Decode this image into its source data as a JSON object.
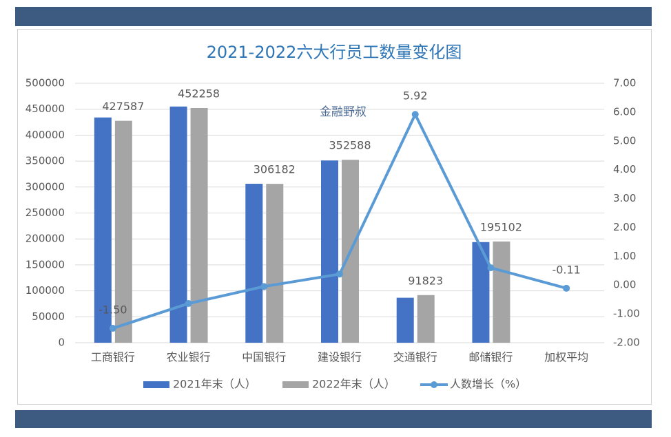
{
  "chart_data": {
    "type": "bar-line",
    "title": "2021-2022六大行员工数量变化图",
    "annotation": "金融野叔",
    "categories": [
      "工商银行",
      "农业银行",
      "中国银行",
      "建设银行",
      "交通银行",
      "邮储银行",
      "加权平均"
    ],
    "series": [
      {
        "name": "2021年末（人）",
        "type": "bar",
        "color": "#4472c4",
        "values": [
          434089,
          455174,
          306322,
          351252,
          86691,
          193946,
          null
        ]
      },
      {
        "name": "2022年末（人）",
        "type": "bar",
        "color": "#a5a5a5",
        "values": [
          427587,
          452258,
          306182,
          352588,
          91823,
          195102,
          null
        ]
      },
      {
        "name": "人数增长（%）",
        "type": "line",
        "axis": "y2",
        "color": "#5b9bd5",
        "values": [
          -1.5,
          -0.64,
          -0.05,
          0.38,
          5.92,
          0.6,
          -0.11
        ],
        "value_labels": [
          "-1.50",
          null,
          null,
          null,
          "5.92",
          null,
          "-0.11"
        ]
      }
    ],
    "ylim": [
      0,
      500000
    ],
    "yticks": [
      0,
      50000,
      100000,
      150000,
      200000,
      250000,
      300000,
      350000,
      400000,
      450000,
      500000
    ],
    "y2lim": [
      -2,
      7
    ],
    "y2ticks": [
      {
        "value": -2,
        "label": "-2.00"
      },
      {
        "value": -1,
        "label": "-1.00"
      },
      {
        "value": 0,
        "label": "0.00"
      },
      {
        "value": 1,
        "label": "1.00"
      },
      {
        "value": 2,
        "label": "2.00"
      },
      {
        "value": 3,
        "label": "3.00"
      },
      {
        "value": 4,
        "label": "4.00"
      },
      {
        "value": 5,
        "label": "5.00"
      },
      {
        "value": 6,
        "label": "6.00"
      },
      {
        "value": 7,
        "label": "7.00"
      }
    ],
    "grid": true,
    "legend": "bottom"
  }
}
